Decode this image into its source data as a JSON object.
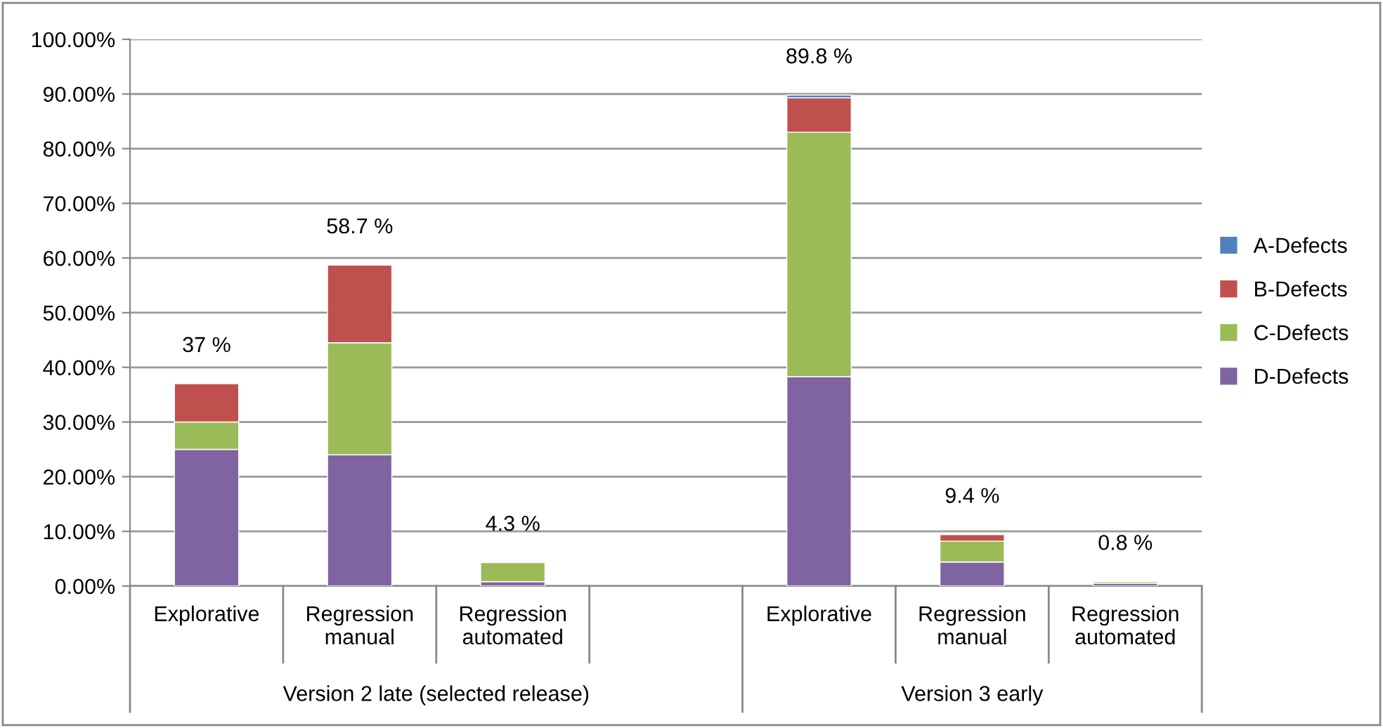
{
  "chart_data": {
    "type": "bar",
    "stacked": true,
    "categories": [
      "Explorative",
      "Regression\nmanual",
      "Regression\nautomated",
      null,
      "Explorative",
      "Regression\nmanual",
      "Regression\nautomated"
    ],
    "series": [
      {
        "name": "D-Defects",
        "color": "#8064a2",
        "values": [
          25,
          24,
          0.8,
          null,
          38.3,
          4.4,
          0.5
        ]
      },
      {
        "name": "C-Defects",
        "color": "#9bbb59",
        "values": [
          5,
          20.5,
          3.5,
          null,
          44.7,
          3.8,
          0.3
        ]
      },
      {
        "name": "B-Defects",
        "color": "#c0504d",
        "values": [
          7,
          14.2,
          null,
          null,
          6.3,
          1.2,
          null
        ]
      },
      {
        "name": "A-Defects",
        "color": "#4f81bd",
        "values": [
          null,
          null,
          null,
          null,
          0.5,
          null,
          null
        ]
      }
    ],
    "totals": [
      "37 %",
      "58.7 %",
      "4.3 %",
      null,
      "89.8 %",
      "9.4 %",
      "0.8 %"
    ],
    "annotations": [
      "Version 2 late (selected release)",
      "Version 3 early"
    ],
    "ylim": [
      0,
      100
    ],
    "yticks": [
      {
        "value": 0,
        "label": "0.00%"
      },
      {
        "value": 10,
        "label": "10.00%"
      },
      {
        "value": 20,
        "label": "20.00%"
      },
      {
        "value": 30,
        "label": "30.00%"
      },
      {
        "value": 40,
        "label": "40.00%"
      },
      {
        "value": 50,
        "label": "50.00%"
      },
      {
        "value": 60,
        "label": "60.00%"
      },
      {
        "value": 70,
        "label": "70.00%"
      },
      {
        "value": 80,
        "label": "80.00%"
      },
      {
        "value": 90,
        "label": "90.00%"
      },
      {
        "value": 100,
        "label": "100.00%"
      }
    ],
    "grid": "y",
    "legend": "right"
  }
}
